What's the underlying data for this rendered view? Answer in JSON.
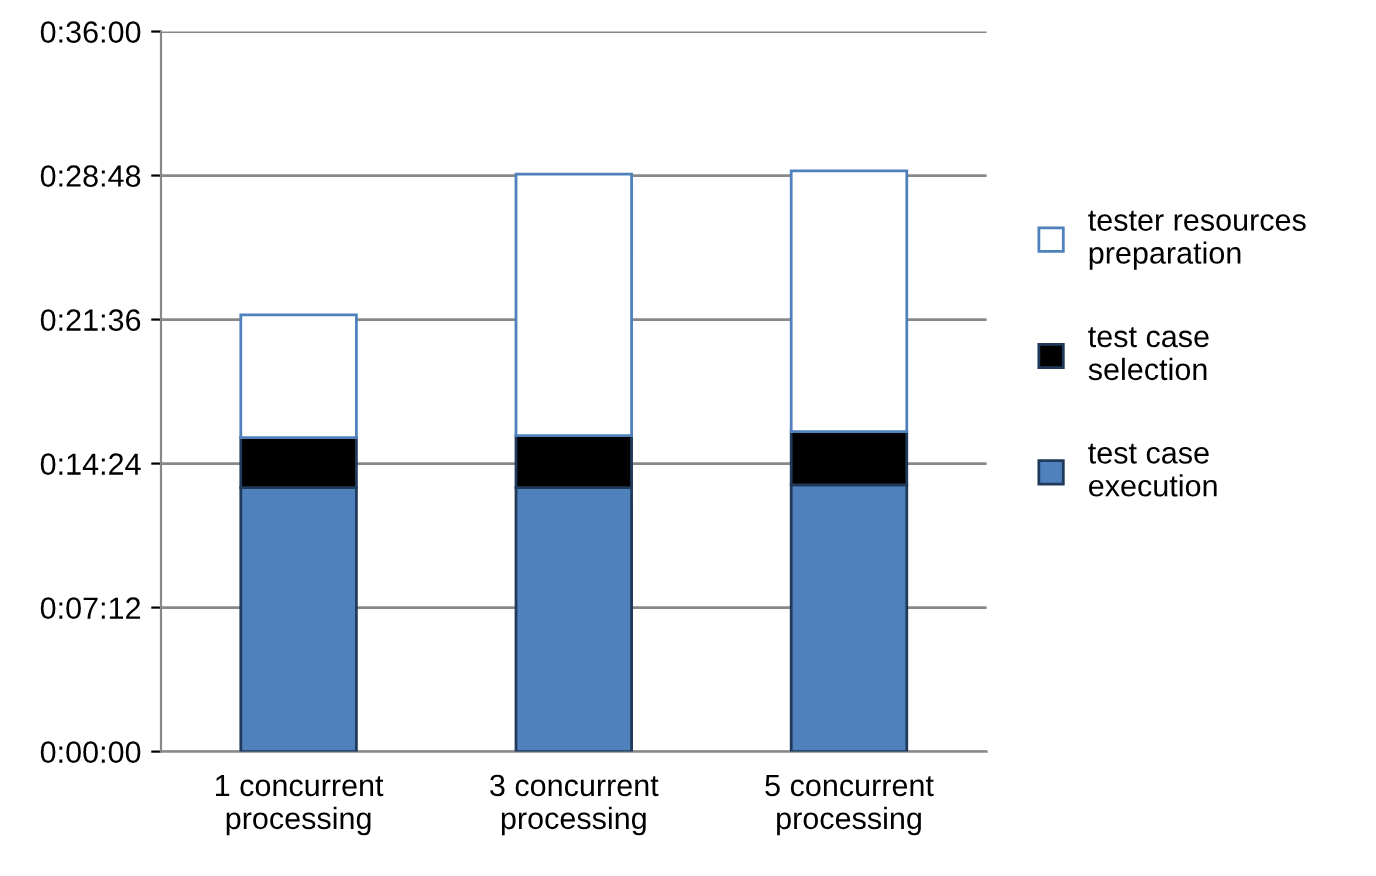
{
  "chart_data": {
    "type": "bar",
    "stacked": true,
    "categories": [
      "1 concurrent processing",
      "3 concurrent processing",
      "5 concurrent processing"
    ],
    "series": [
      {
        "name": "test case execution",
        "color": "#4f81bd",
        "values": [
          792,
          792,
          800
        ]
      },
      {
        "name": "test case selection",
        "color": "#000000",
        "values": [
          150,
          156,
          160
        ]
      },
      {
        "name": "tester resources preparation",
        "color": "#ffffff",
        "values": [
          368,
          784,
          782
        ]
      }
    ],
    "ylim": [
      0,
      2160
    ],
    "yticks": [
      {
        "value": 0,
        "label": "0:00:00"
      },
      {
        "value": 432,
        "label": "0:07:12"
      },
      {
        "value": 864,
        "label": "0:14:24"
      },
      {
        "value": 1296,
        "label": "0:21:36"
      },
      {
        "value": 1728,
        "label": "0:28:48"
      },
      {
        "value": 2160,
        "label": "0:36:00"
      }
    ],
    "grid": "y",
    "legend": "right"
  }
}
